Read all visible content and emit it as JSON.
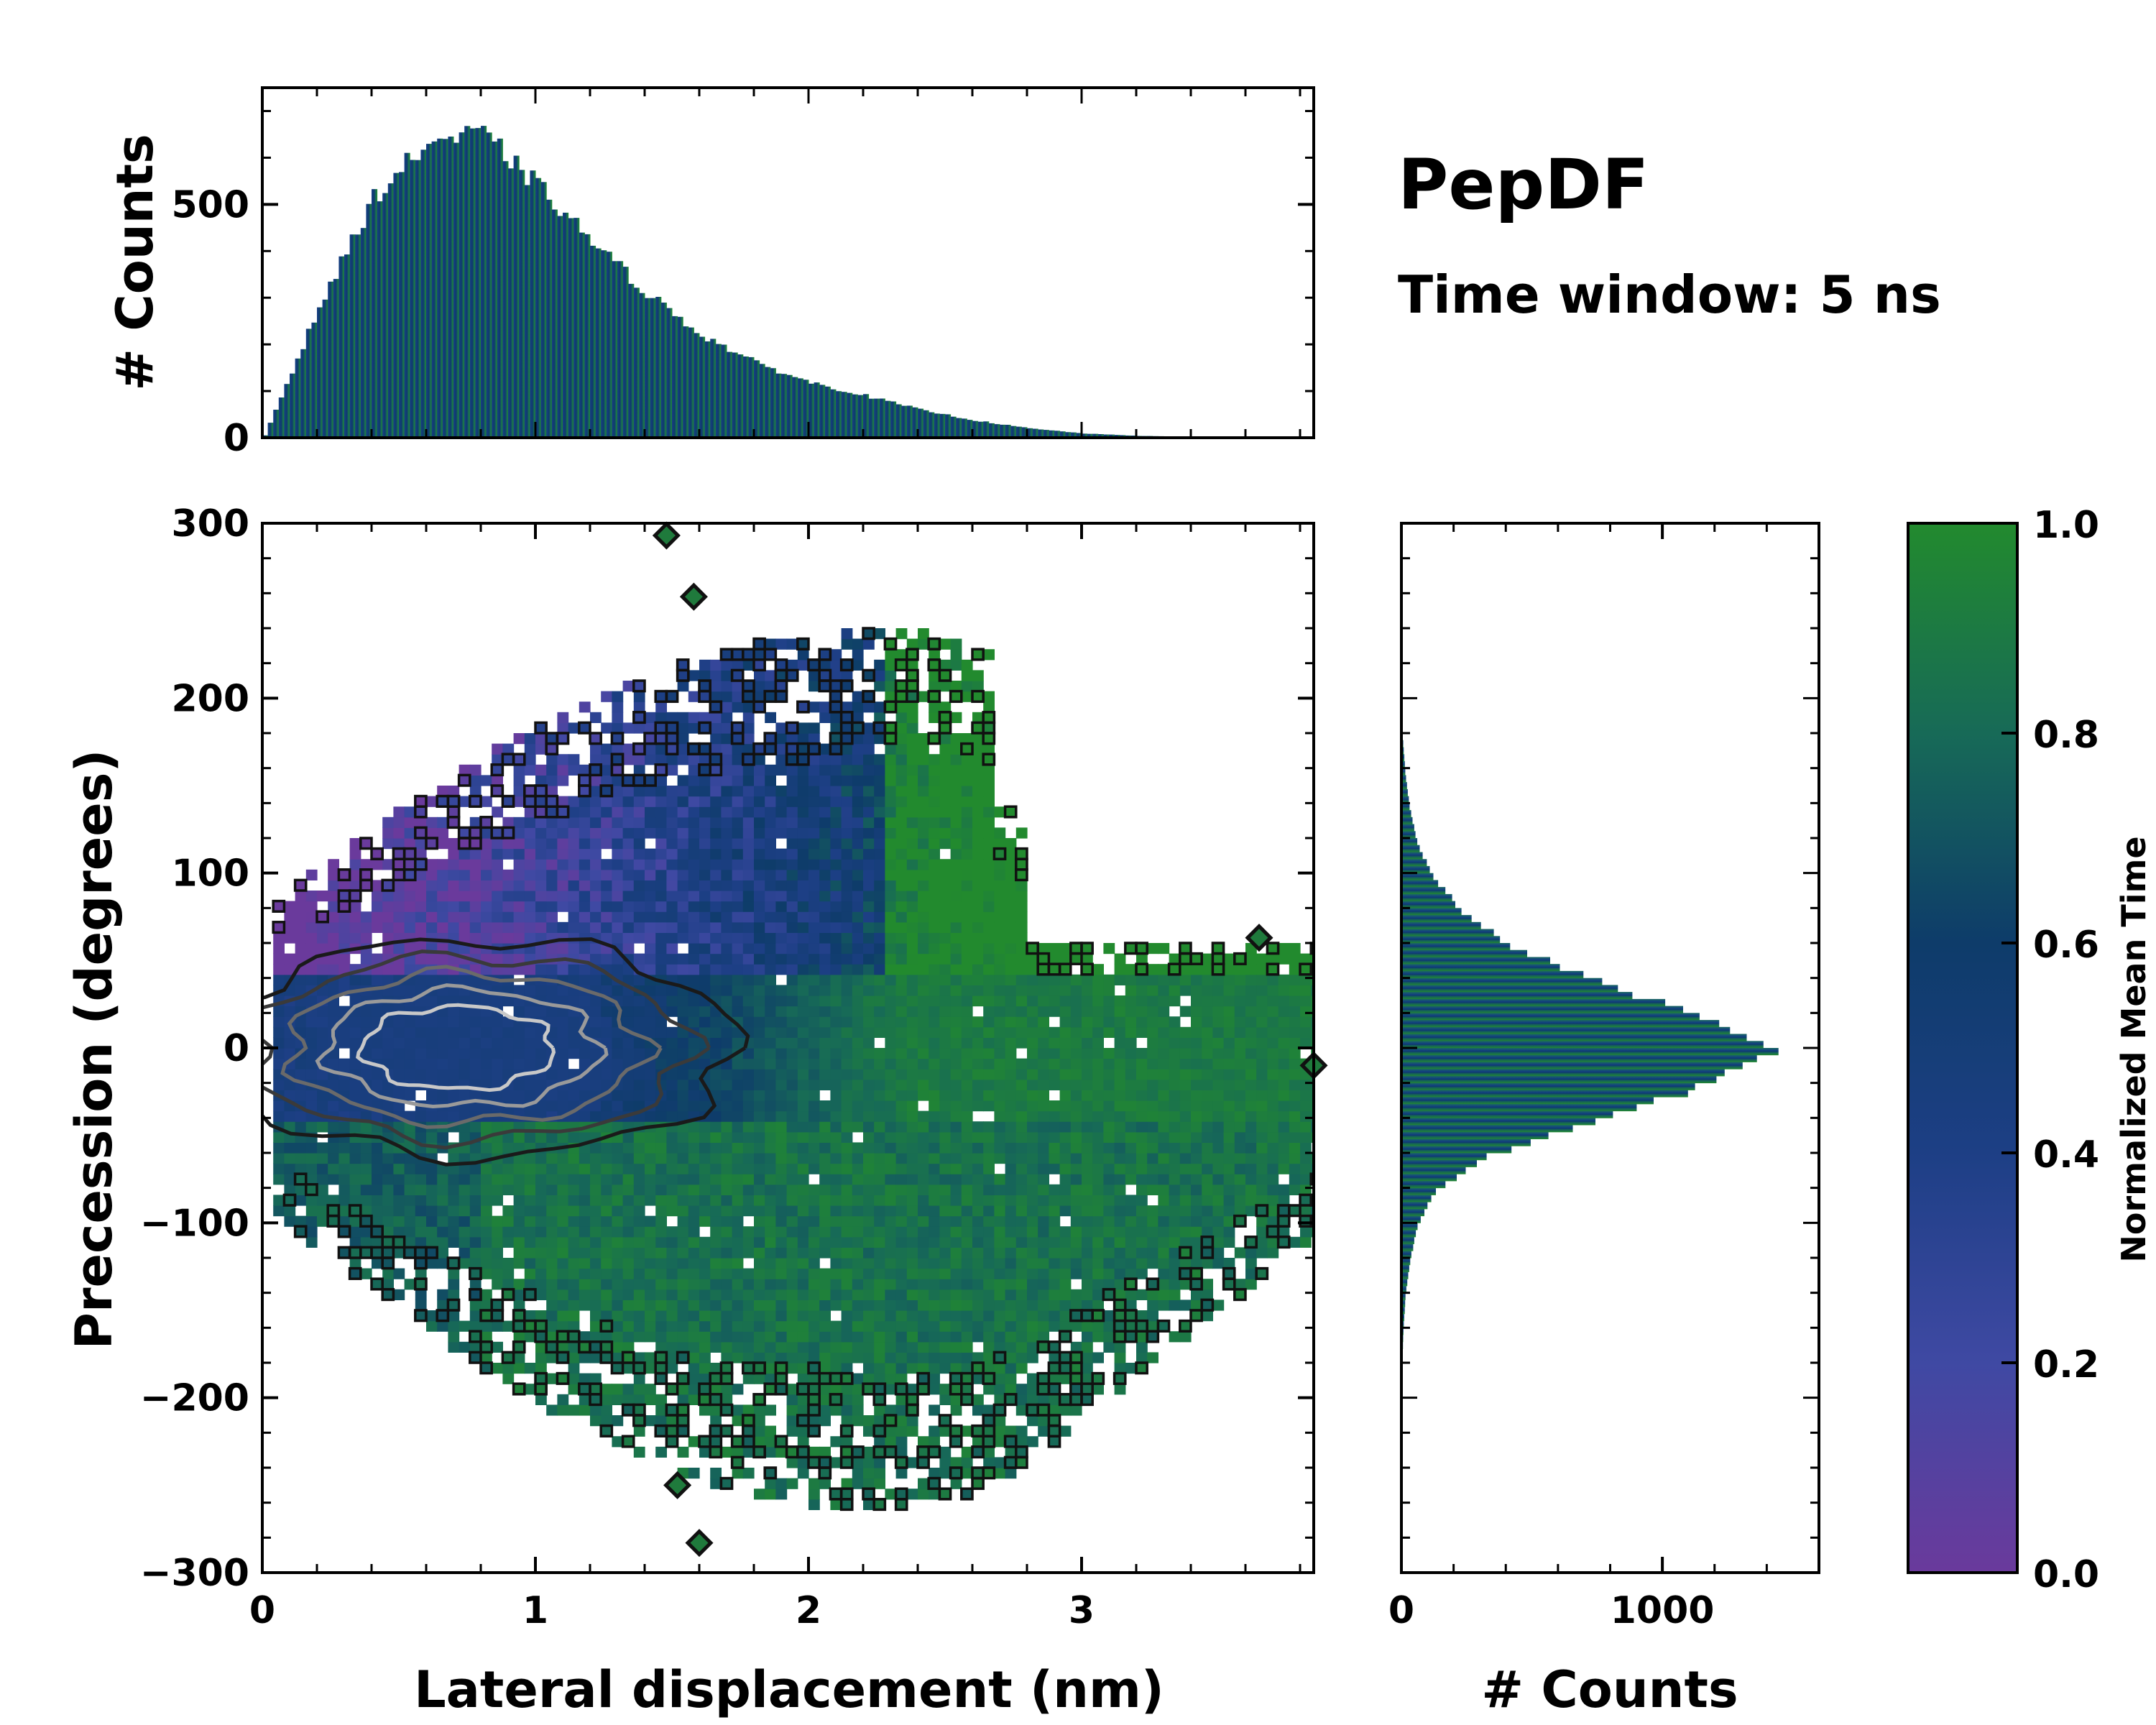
{
  "chart_data": [
    {
      "type": "heatmap",
      "name": "main-2d-histogram",
      "xlabel": "Lateral displacement (nm)",
      "ylabel": "Precession (degrees)",
      "xlim": [
        0,
        3.85
      ],
      "ylim": [
        -300,
        300
      ],
      "xticks": [
        "0",
        "1",
        "2",
        "3"
      ],
      "xtick_values": [
        0,
        1,
        2,
        3
      ],
      "yticks": [
        "300",
        "200",
        "100",
        "0",
        "−100",
        "−200",
        "−300"
      ],
      "ytick_values": [
        300,
        200,
        100,
        0,
        -100,
        -200,
        -300
      ],
      "color_meaning": "Normalized Mean Time",
      "dense_core": {
        "x_center": 0.75,
        "y_center": 0,
        "x_halfwidth": 0.55,
        "y_halfwidth": 45,
        "value": 0.45
      },
      "upper_lobe": {
        "x_range": [
          0.4,
          2.6
        ],
        "y_range": [
          60,
          230
        ],
        "value": 0.38
      },
      "lower_lobe": {
        "x_range": [
          0.3,
          2.8
        ],
        "y_range": [
          -260,
          -60
        ],
        "value": 0.85
      },
      "contour_levels": 5,
      "outliers": [
        {
          "x": 1.48,
          "y": 293
        },
        {
          "x": 1.58,
          "y": 258
        },
        {
          "x": 1.6,
          "y": -283
        },
        {
          "x": 1.52,
          "y": -250
        },
        {
          "x": 3.65,
          "y": 63
        },
        {
          "x": 3.85,
          "y": -10
        }
      ]
    },
    {
      "type": "bar",
      "name": "top-histogram",
      "xlabel": "",
      "ylabel": "# Counts",
      "xlim": [
        0,
        3.85
      ],
      "ylim": [
        0,
        750
      ],
      "yticks": [
        "500",
        "0"
      ],
      "ytick_values": [
        500,
        0
      ],
      "bin_edges_x": [
        0.0,
        0.2,
        0.4,
        0.6,
        0.8,
        1.0,
        1.2,
        1.4,
        1.6,
        1.8,
        2.0,
        2.2,
        2.4,
        2.6,
        2.8,
        3.0,
        3.2,
        3.4,
        3.6,
        3.8
      ],
      "values": [
        5,
        280,
        515,
        635,
        650,
        540,
        420,
        310,
        220,
        160,
        118,
        90,
        60,
        37,
        20,
        9,
        4,
        2,
        0,
        0
      ]
    },
    {
      "type": "bar",
      "name": "right-histogram",
      "orientation": "horizontal",
      "xlabel": "# Counts",
      "ylabel": "",
      "xlim": [
        0,
        1600
      ],
      "xticks": [
        "0",
        "1000"
      ],
      "xtick_values": [
        0,
        1000
      ],
      "y": [
        180,
        160,
        140,
        120,
        100,
        80,
        60,
        40,
        20,
        0,
        -20,
        -40,
        -60,
        -80,
        -100,
        -120,
        -140,
        -160,
        -180,
        -200
      ],
      "values": [
        5,
        15,
        32,
        60,
        120,
        235,
        420,
        760,
        1130,
        1420,
        1150,
        740,
        330,
        130,
        62,
        33,
        16,
        8,
        3,
        0
      ]
    },
    {
      "type": "colorbar",
      "name": "colorbar",
      "label": "Normalized Mean Time",
      "range": [
        0.0,
        1.0
      ],
      "ticks": [
        "0.0",
        "0.2",
        "0.4",
        "0.6",
        "0.8",
        "1.0"
      ],
      "tick_values": [
        0.0,
        0.2,
        0.4,
        0.6,
        0.8,
        1.0
      ],
      "colors": [
        "#6a3a9c",
        "#3f49a3",
        "#1d3f85",
        "#0e3c6a",
        "#176a57",
        "#228a2e"
      ]
    }
  ],
  "annotations": {
    "title": "PepDF",
    "subtitle": "Time window: 5 ns"
  }
}
